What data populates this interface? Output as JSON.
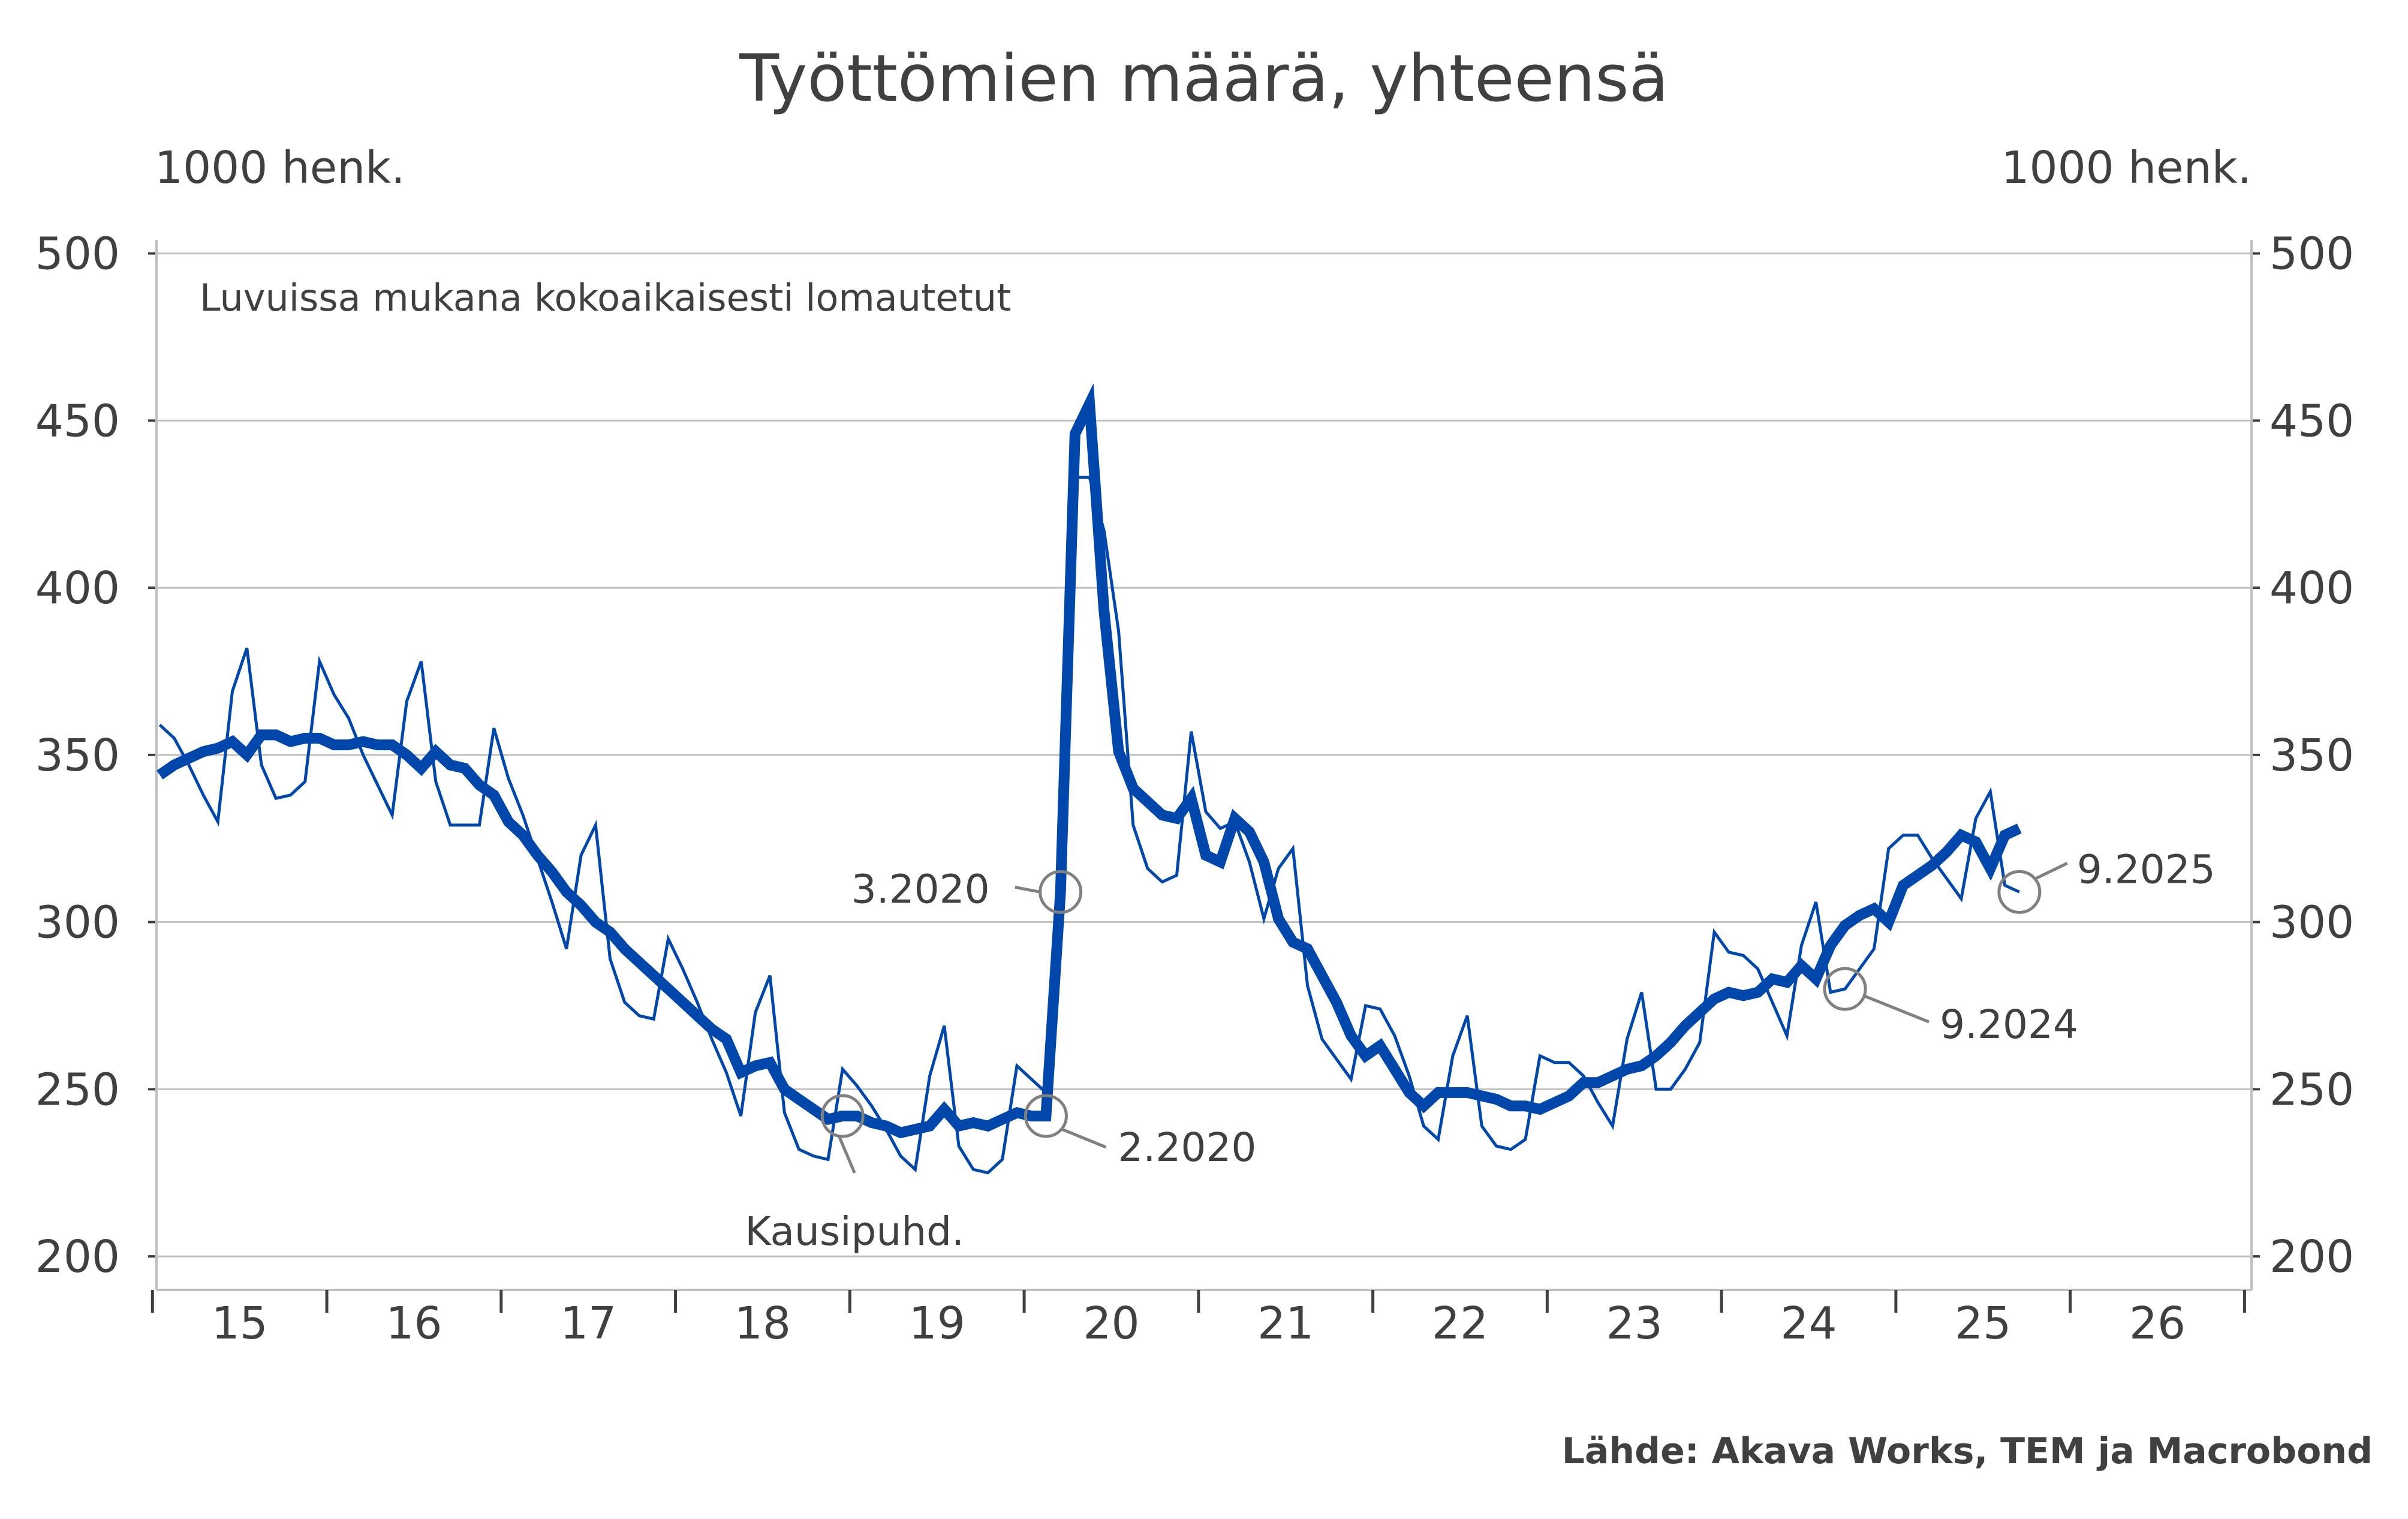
{
  "chart_data": {
    "type": "line",
    "title": "Työttömien määrä, yhteensä",
    "ylabel_left": "1000 henk.",
    "ylabel_right": "1000 henk.",
    "note": "Luvuissa mukana kokoaikaisesti lomautetut",
    "source": "Lähde: Akava Works, TEM ja Macrobond",
    "ylim": [
      200,
      500
    ],
    "yticks": [
      200,
      250,
      300,
      350,
      400,
      450,
      500
    ],
    "xlim": [
      "2015-01",
      "2026-12"
    ],
    "xtick_labels": [
      "15",
      "16",
      "17",
      "18",
      "19",
      "20",
      "21",
      "22",
      "23",
      "24",
      "25",
      "26"
    ],
    "grid": true,
    "x_start": "2015-01",
    "frequency": "monthly",
    "series": [
      {
        "style": "thin",
        "color": "#0047AB",
        "values": [
          359,
          355,
          347,
          338,
          330,
          369,
          382,
          347,
          337,
          338,
          342,
          378,
          368,
          361,
          350,
          341,
          332,
          366,
          378,
          342,
          329,
          329,
          329,
          358,
          343,
          332,
          319,
          306,
          292,
          320,
          329,
          289,
          276,
          272,
          271,
          295,
          286,
          276,
          265,
          255,
          242,
          273,
          284,
          243,
          232,
          230,
          229,
          256,
          251,
          245,
          238,
          230,
          226,
          254,
          269,
          233,
          226,
          225,
          229,
          257,
          253,
          249,
          310,
          433,
          433,
          417,
          387,
          329,
          316,
          312,
          314,
          357,
          333,
          328,
          330,
          318,
          301,
          316,
          322,
          281,
          265,
          259,
          253,
          275,
          274,
          266,
          254,
          239,
          235,
          260,
          272,
          239,
          233,
          232,
          235,
          260,
          258,
          258,
          254,
          246,
          239,
          265,
          279,
          250,
          250,
          256,
          264,
          297,
          291,
          290,
          286,
          276,
          266,
          293,
          306,
          279,
          280,
          286,
          292,
          322,
          326,
          326,
          319,
          313,
          307,
          331,
          339,
          311,
          309
        ]
      },
      {
        "style": "thick",
        "color": "#0047AB",
        "values": [
          344,
          347,
          349,
          351,
          352,
          354,
          350,
          356,
          356,
          354,
          355,
          355,
          353,
          353,
          354,
          353,
          353,
          350,
          346,
          351,
          347,
          346,
          341,
          338,
          330,
          326,
          320,
          315,
          309,
          305,
          300,
          297,
          292,
          288,
          284,
          280,
          276,
          272,
          268,
          265,
          255,
          257,
          258,
          250,
          247,
          244,
          241,
          242,
          242,
          240,
          239,
          237,
          238,
          239,
          244,
          239,
          240,
          239,
          241,
          243,
          242,
          242,
          309,
          446,
          455,
          393,
          351,
          340,
          336,
          332,
          331,
          337,
          320,
          318,
          331,
          327,
          318,
          301,
          294,
          292,
          284,
          276,
          266,
          260,
          263,
          256,
          249,
          245,
          249,
          249,
          249,
          248,
          247,
          245,
          245,
          244,
          246,
          248,
          252,
          252,
          254,
          256,
          257,
          260,
          264,
          269,
          273,
          277,
          279,
          278,
          279,
          283,
          282,
          287,
          283,
          293,
          299,
          302,
          304,
          300,
          311,
          314,
          317,
          321,
          326,
          324,
          316,
          326,
          328
        ]
      }
    ],
    "annotations": [
      {
        "label": "Kausipuhd.",
        "date": "2018-12",
        "series": 1
      },
      {
        "label": "2.2020",
        "date": "2020-02",
        "series": 1
      },
      {
        "label": "3.2020",
        "date": "2020-03",
        "series": 1
      },
      {
        "label": "9.2024",
        "date": "2024-09",
        "series": 0
      },
      {
        "label": "9.2025",
        "date": "2025-09",
        "series": 0
      }
    ],
    "colors": {
      "line": "#0047AB",
      "grid": "#C0C0C0",
      "annotation": "#808080",
      "text": "#404040"
    }
  }
}
